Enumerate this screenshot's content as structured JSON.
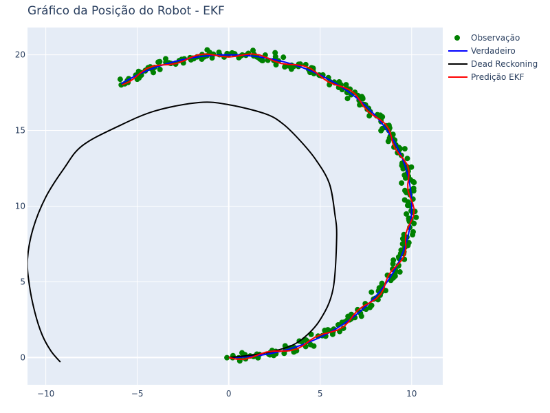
{
  "chart_data": {
    "type": "scatter",
    "title": "Gráfico da Posição do Robot - EKF",
    "xlabel": "",
    "ylabel": "",
    "xlim": [
      -11,
      11.7
    ],
    "ylim": [
      -1.8,
      21.8
    ],
    "x_ticks": [
      -10,
      -5,
      0,
      5,
      10
    ],
    "y_ticks": [
      0,
      5,
      10,
      15,
      20
    ],
    "x_tick_labels": [
      "−10",
      "−5",
      "0",
      "5",
      "10"
    ],
    "y_tick_labels": [
      "0",
      "5",
      "10",
      "15",
      "20"
    ],
    "grid": true,
    "legend_position": "top-right",
    "colors": {
      "plot_bg": "#e5ecf6",
      "grid": "#ffffff",
      "text": "#2a3f5f"
    },
    "series": [
      {
        "name": "Observação",
        "mode": "markers",
        "color": "#008000",
        "marker": "circle",
        "x_param": "angle_deg",
        "angle_range": [
          -90,
          126
        ],
        "count": 320,
        "center": [
          0,
          10
        ],
        "radius": 10,
        "noise": 0.28
      },
      {
        "name": "Verdadeiro",
        "mode": "line",
        "color": "#0000ff",
        "center": [
          0,
          10
        ],
        "radius": 10,
        "angle_range": [
          -90,
          126
        ]
      },
      {
        "name": "Dead Reckoning",
        "mode": "line",
        "color": "#000000",
        "points": [
          [
            0,
            0
          ],
          [
            1.5,
            0.2
          ],
          [
            3,
            0.6
          ],
          [
            4,
            1.2
          ],
          [
            5,
            2.5
          ],
          [
            5.7,
            4.5
          ],
          [
            5.9,
            7.9
          ],
          [
            5.8,
            9.5
          ],
          [
            5.5,
            11.5
          ],
          [
            4.8,
            13
          ],
          [
            4,
            14.2
          ],
          [
            3,
            15.4
          ],
          [
            2,
            16.1
          ],
          [
            0,
            16.7
          ],
          [
            -1.6,
            16.85
          ],
          [
            -4,
            16.3
          ],
          [
            -6,
            15.3
          ],
          [
            -8,
            14
          ],
          [
            -9,
            12.5
          ],
          [
            -10,
            10.6
          ],
          [
            -10.7,
            8.5
          ],
          [
            -11,
            6.5
          ],
          [
            -10.9,
            4.8
          ],
          [
            -10.6,
            3
          ],
          [
            -10.2,
            1.5
          ],
          [
            -9.7,
            0.4
          ],
          [
            -9.2,
            -0.3
          ]
        ]
      },
      {
        "name": "Predição EKF",
        "mode": "line",
        "color": "#ff0000",
        "center": [
          0,
          10
        ],
        "radius": 10,
        "angle_range": [
          -90,
          126
        ],
        "wobble": 0.15
      }
    ]
  }
}
